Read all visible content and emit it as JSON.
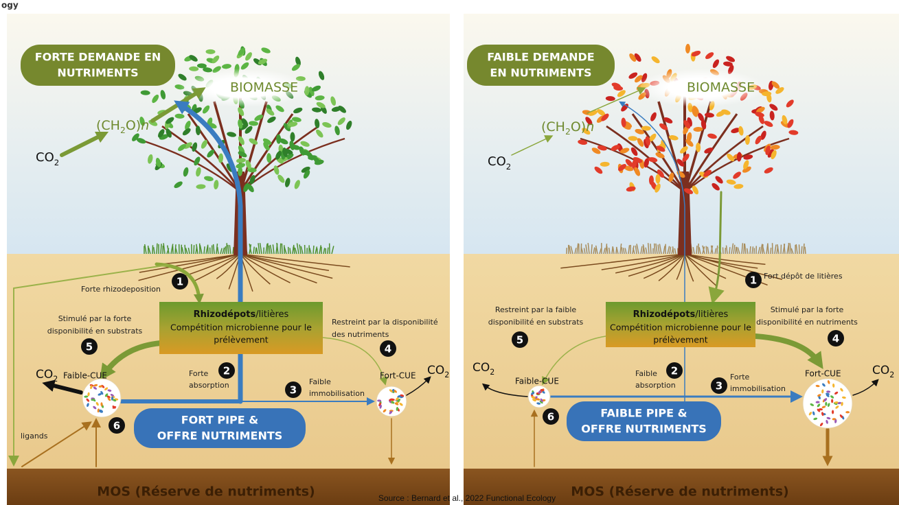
{
  "header_fragment": "ogy",
  "panels": [
    {
      "demand": [
        "FORTE DEMANDE EN",
        "NUTRIMENTS"
      ],
      "biomasse": "BIOMASSE",
      "ch2o": [
        "(CH",
        "2",
        "O)",
        "n"
      ],
      "co2_air": [
        "CO",
        "2"
      ],
      "process_1": "Forte rhizodeposition",
      "badges": [
        "1",
        "2",
        "3",
        "4",
        "5",
        "6"
      ],
      "box_title": "Rhizodépots",
      "box_title_suffix": "/litières",
      "box_text": [
        "Compétition microbienne pour le",
        "prélèvement"
      ],
      "label_5": [
        "Stimulé par la forte",
        "disponibilité en substrats"
      ],
      "label_4": [
        "Restreint par la disponibilité",
        "des nutriments"
      ],
      "co2_left": [
        "CO",
        "2"
      ],
      "co2_right": [
        "CO",
        "2"
      ],
      "faible_cue": "Faible-CUE",
      "fort_cue": "Fort-CUE",
      "absorption": [
        "Forte",
        "absorption"
      ],
      "immobilisation": [
        "Faible",
        "immobilisation"
      ],
      "pipe": [
        "FORT PIPE &",
        "OFFRE NUTRIMENTS"
      ],
      "ligands": "ligands",
      "mos": "MOS (Réserve de nutriments)"
    },
    {
      "demand": [
        "FAIBLE DEMANDE",
        "EN NUTRIMENTS"
      ],
      "biomasse": "BIOMASSE",
      "ch2o": [
        "(CH",
        "2",
        "O)",
        "n"
      ],
      "co2_air": [
        "CO",
        "2"
      ],
      "process_1": "Fort dépôt de litières",
      "badges": [
        "1",
        "2",
        "3",
        "4",
        "5",
        "6"
      ],
      "box_title": "Rhizodépots",
      "box_title_suffix": "/litières",
      "box_text": [
        "Compétition microbienne pour le",
        "prélèvement"
      ],
      "label_5": [
        "Restreint par la faible",
        "disponibilité en substrats"
      ],
      "label_4": [
        "Stimulé par la forte",
        "disponibilité en nutriments"
      ],
      "co2_left": [
        "CO",
        "2"
      ],
      "co2_right": [
        "CO",
        "2"
      ],
      "faible_cue": "Faible-CUE",
      "fort_cue": "Fort-CUE",
      "absorption": [
        "Faible",
        "absorption"
      ],
      "immobilisation": [
        "Forte",
        "immobilisation"
      ],
      "pipe": [
        "FAIBLE PIPE &",
        "OFFRE NUTRIMENTS"
      ],
      "mos": "MOS (Réserve de nutriments)"
    }
  ],
  "source": "Source : Bernard et al., 2022 Functional Ecology"
}
